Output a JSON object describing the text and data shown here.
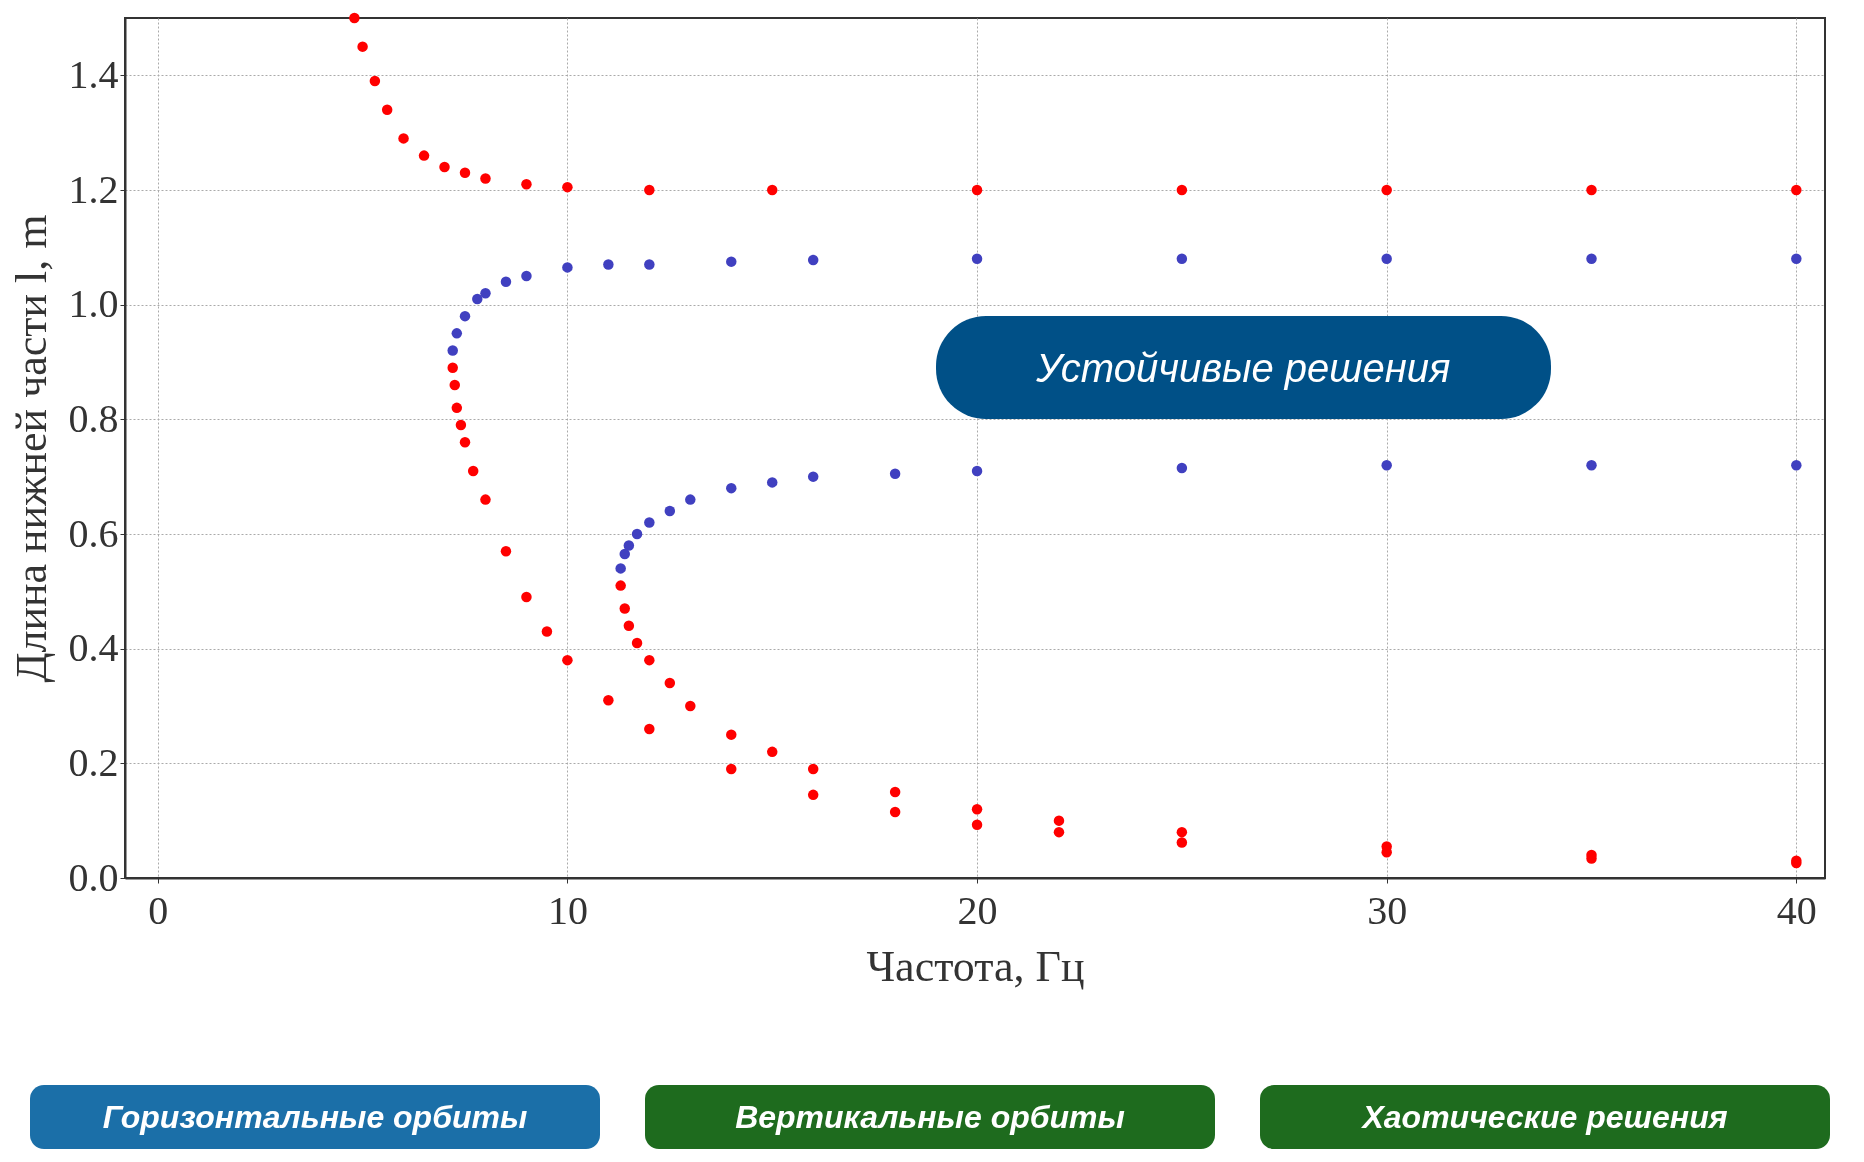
{
  "chart_data": {
    "type": "scatter",
    "xlabel": "Частота, Гц",
    "ylabel": "Длина нижней части l, m",
    "xlim": [
      -0.8,
      40.7
    ],
    "ylim": [
      0,
      1.5
    ],
    "xticks": [
      0,
      10,
      20,
      30,
      40
    ],
    "yticks": [
      {
        "value": 0,
        "label": "0.0"
      },
      0.2,
      0.4,
      0.6,
      0.8,
      {
        "value": 1,
        "label": "1.0"
      },
      1.2,
      1.4
    ],
    "grid": true,
    "marker": "circle",
    "annotations": [
      "Устойчивые решения",
      "Горизонтальные орбиты",
      "Вертикальные орбиты",
      "Хаотические решения"
    ],
    "series": [
      {
        "color": "#ff0000",
        "x": [
          4.8,
          5.0,
          5.3,
          5.6,
          6,
          6.5,
          7,
          7.5,
          8,
          9,
          10,
          12,
          15,
          20,
          25,
          30,
          35,
          40
        ],
        "values": [
          1.5,
          1.45,
          1.39,
          1.34,
          1.29,
          1.26,
          1.24,
          1.23,
          1.22,
          1.21,
          1.205,
          1.2,
          1.2,
          1.2,
          1.2,
          1.2,
          1.2,
          1.2
        ]
      },
      {
        "color": "#4040c0",
        "x": [
          7.2,
          7.3,
          7.5,
          7.8,
          8,
          8.5,
          9,
          10,
          11,
          12,
          14,
          16,
          20,
          25,
          30,
          35,
          40
        ],
        "values": [
          0.92,
          0.95,
          0.98,
          1.01,
          1.02,
          1.04,
          1.05,
          1.065,
          1.07,
          1.07,
          1.075,
          1.078,
          1.08,
          1.08,
          1.08,
          1.08,
          1.08
        ]
      },
      {
        "color": "#ff0000",
        "x": [
          7.2,
          7.25,
          7.3,
          7.4,
          7.5,
          7.7,
          8,
          8.5,
          9,
          9.5,
          10,
          11,
          12,
          14,
          16,
          18,
          20,
          22,
          25,
          30,
          35,
          40
        ],
        "values": [
          0.89,
          0.86,
          0.82,
          0.79,
          0.76,
          0.71,
          0.66,
          0.57,
          0.49,
          0.43,
          0.38,
          0.31,
          0.26,
          0.19,
          0.145,
          0.115,
          0.093,
          0.08,
          0.062,
          0.045,
          0.034,
          0.026
        ]
      },
      {
        "color": "#ff0000",
        "x": [
          11.3,
          11.4,
          11.5,
          11.7,
          12,
          12.5,
          13,
          14,
          15,
          16,
          18,
          20,
          22,
          25,
          30,
          35,
          40
        ],
        "values": [
          0.51,
          0.47,
          0.44,
          0.41,
          0.38,
          0.34,
          0.3,
          0.25,
          0.22,
          0.19,
          0.15,
          0.12,
          0.1,
          0.08,
          0.055,
          0.04,
          0.03
        ]
      },
      {
        "color": "#4040c0",
        "x": [
          11.3,
          11.4,
          11.5,
          11.7,
          12,
          12.5,
          13,
          14,
          15,
          16,
          18,
          20,
          25,
          30,
          35,
          40
        ],
        "values": [
          0.54,
          0.565,
          0.58,
          0.6,
          0.62,
          0.64,
          0.66,
          0.68,
          0.69,
          0.7,
          0.705,
          0.71,
          0.715,
          0.72,
          0.72,
          0.72
        ]
      }
    ]
  }
}
